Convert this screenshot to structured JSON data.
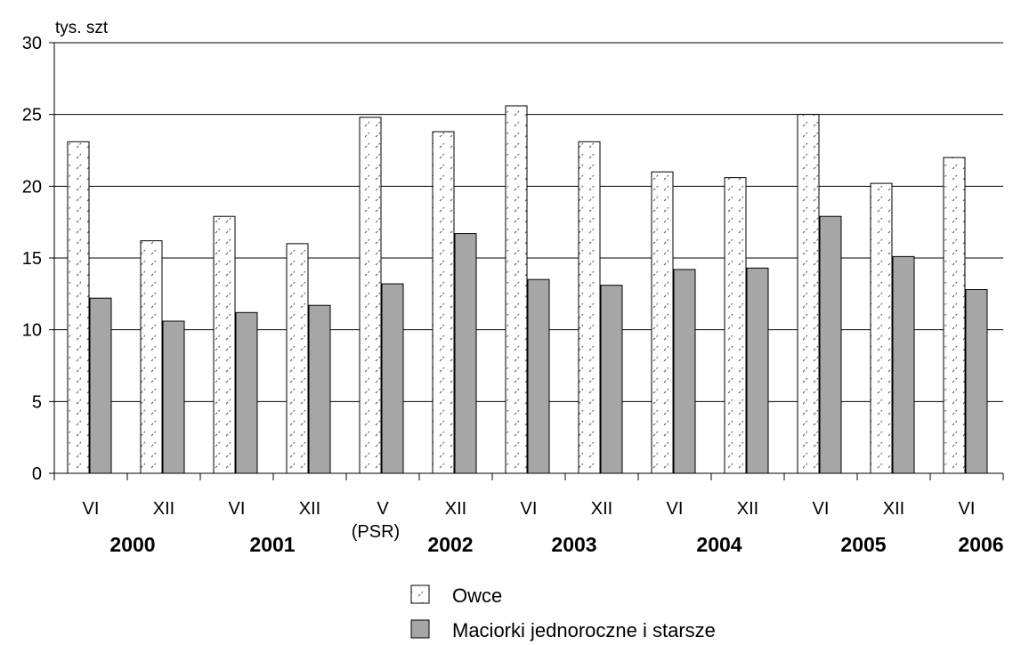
{
  "chart_data": {
    "type": "bar",
    "ylabel": "tys. szt",
    "ylim": [
      0,
      30
    ],
    "yticks": [
      0,
      5,
      10,
      15,
      20,
      25,
      30
    ],
    "grid": true,
    "legend_position": "bottom-center",
    "categories": [
      "VI",
      "XII",
      "VI",
      "XII",
      "V",
      "XII",
      "VI",
      "XII",
      "VI",
      "XII",
      "VI",
      "XII",
      "VI"
    ],
    "category_sublabels": [
      "",
      "",
      "",
      "",
      "(PSR)",
      "",
      "",
      "",
      "",
      "",
      "",
      "",
      ""
    ],
    "years": [
      {
        "label": "2000",
        "category_index": 0
      },
      {
        "label": "2001",
        "category_index": 2
      },
      {
        "label": "2002",
        "category_index": 4
      },
      {
        "label": "2003",
        "category_index": 6
      },
      {
        "label": "2004",
        "category_index": 8
      },
      {
        "label": "2005",
        "category_index": 10
      },
      {
        "label": "2006",
        "category_index": 12
      }
    ],
    "series": [
      {
        "name": "Owce",
        "color": "#ffffff",
        "pattern": "hatched",
        "values": [
          23.1,
          16.2,
          17.9,
          16.0,
          24.8,
          23.8,
          25.6,
          23.1,
          21.0,
          20.6,
          25.0,
          20.2,
          22.0
        ]
      },
      {
        "name": "Maciorki jednoroczne i starsze",
        "color": "#a6a6a6",
        "pattern": "solid",
        "values": [
          12.2,
          10.6,
          11.2,
          11.7,
          13.2,
          16.7,
          13.5,
          13.1,
          14.2,
          14.3,
          17.9,
          15.1,
          12.8
        ]
      }
    ]
  }
}
